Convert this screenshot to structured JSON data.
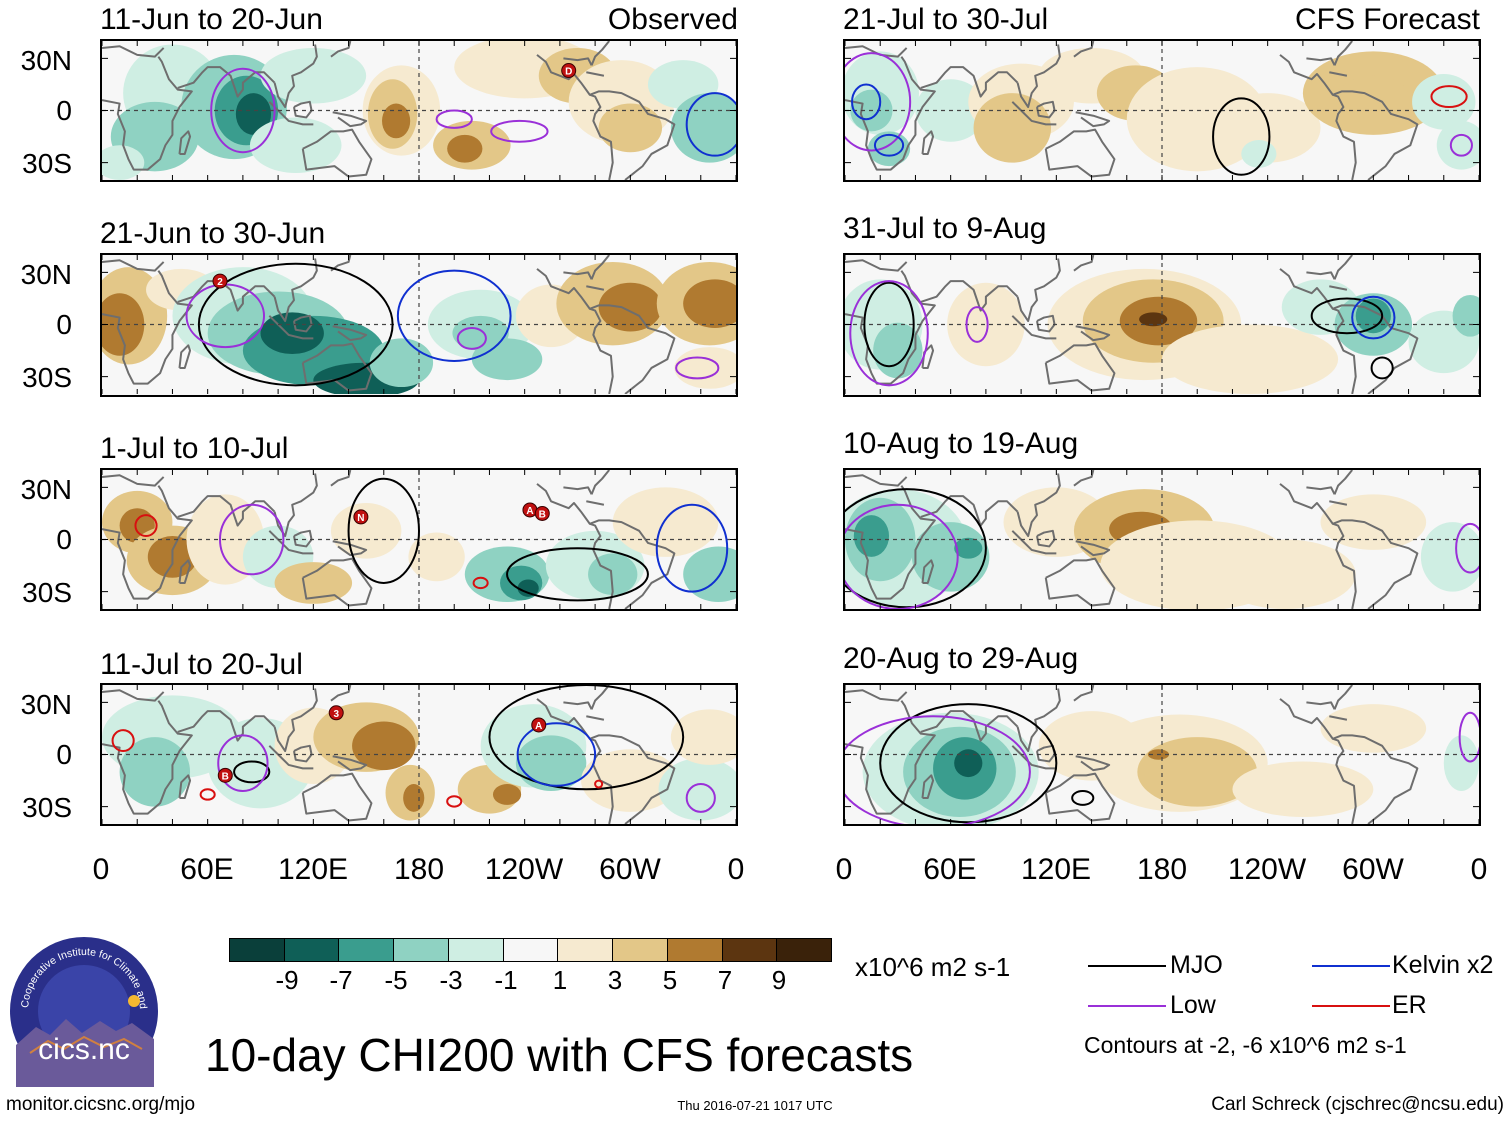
{
  "colors": {
    "brown_dark": "#5c3510",
    "brown": "#b07a30",
    "tan": "#e3c788",
    "cream": "#f6ead0",
    "white": "#f7f7f7",
    "mint": "#cfeee3",
    "aqua": "#8fd2c2",
    "teal": "#3a9d8e",
    "teal_dark": "#0f5f57",
    "mjo": "#000000",
    "kelvin": "#1030d0",
    "low": "#9a30d8",
    "er": "#d81010"
  },
  "panels": [
    {
      "id": "p1",
      "title": "11-Jun to 20-Jun",
      "label": "Observed"
    },
    {
      "id": "p2",
      "title": "21-Jun to 30-Jun",
      "label": ""
    },
    {
      "id": "p3",
      "title": "1-Jul to 10-Jul",
      "label": ""
    },
    {
      "id": "p4",
      "title": "11-Jul to 20-Jul",
      "label": ""
    },
    {
      "id": "p5",
      "title": "21-Jul to 30-Jul",
      "label": "CFS Forecast"
    },
    {
      "id": "p6",
      "title": "31-Jul to 9-Aug",
      "label": ""
    },
    {
      "id": "p7",
      "title": "10-Aug to 19-Aug",
      "label": ""
    },
    {
      "id": "p8",
      "title": "20-Aug to 29-Aug",
      "label": ""
    }
  ],
  "y_ticks": [
    "30N",
    "0",
    "30S"
  ],
  "x_ticks": [
    "0",
    "60E",
    "120E",
    "180",
    "120W",
    "60W",
    "0"
  ],
  "colorbar": {
    "ticks": [
      "-9",
      "-7",
      "-5",
      "-3",
      "-1",
      "1",
      "3",
      "5",
      "7",
      "9"
    ],
    "units": "x10^6 m2 s-1"
  },
  "legend": {
    "mjo": "MJO",
    "low": "Low",
    "kelvin": "Kelvin x2",
    "er": "ER",
    "note": "Contours at -2, -6 x10^6 m2 s-1"
  },
  "logo": {
    "name": "cics.nc",
    "ring_text": "Cooperative Institute for Climate and Satellites"
  },
  "main_title": "10-day CHI200 with CFS forecasts",
  "footer": {
    "left": "monitor.cicsnc.org/mjo",
    "center": "Thu 2016-07-21 1017 UTC",
    "right": "Carl Schreck (cjschrec@ncsu.edu)"
  },
  "storm_markers": {
    "p1": [
      "D"
    ],
    "p2": [
      "2"
    ],
    "p3": [
      "N",
      "A",
      "B"
    ],
    "p4": [
      "3",
      "A",
      "B"
    ]
  }
}
